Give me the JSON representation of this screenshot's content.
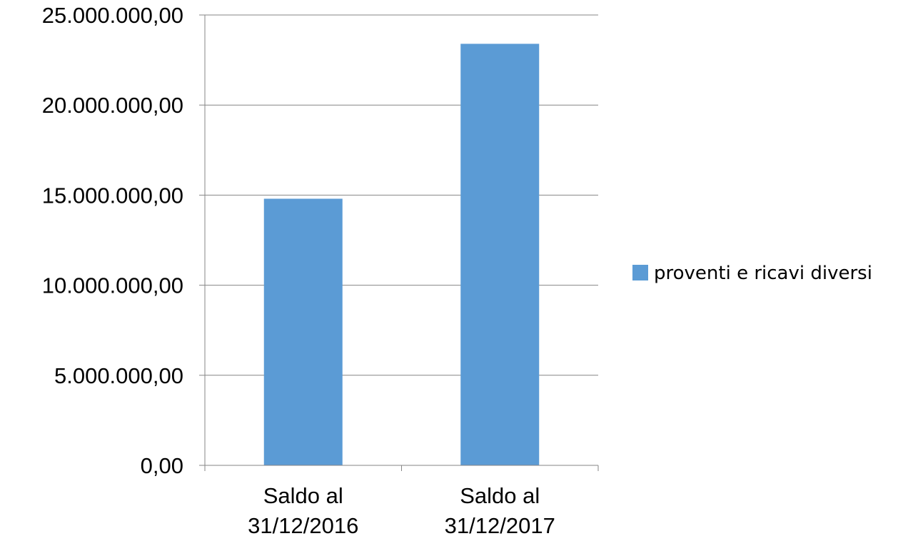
{
  "chart_data": {
    "type": "bar",
    "categories": [
      [
        "Saldo al",
        "31/12/2016"
      ],
      [
        "Saldo al",
        "31/12/2017"
      ]
    ],
    "series": [
      {
        "name": "proventi e ricavi diversi",
        "values": [
          14800000,
          23400000
        ],
        "color": "#5B9BD5"
      }
    ],
    "y_ticks": [
      "0,00",
      "5.000.000,00",
      "10.000.000,00",
      "15.000.000,00",
      "20.000.000,00",
      "25.000.000,00"
    ],
    "y_tick_values": [
      0,
      5000000,
      10000000,
      15000000,
      20000000,
      25000000
    ],
    "ylim": [
      0,
      25000000
    ],
    "grid": true,
    "legend_position": "right",
    "gridline_color": "#868686",
    "axis_color": "#868686"
  }
}
